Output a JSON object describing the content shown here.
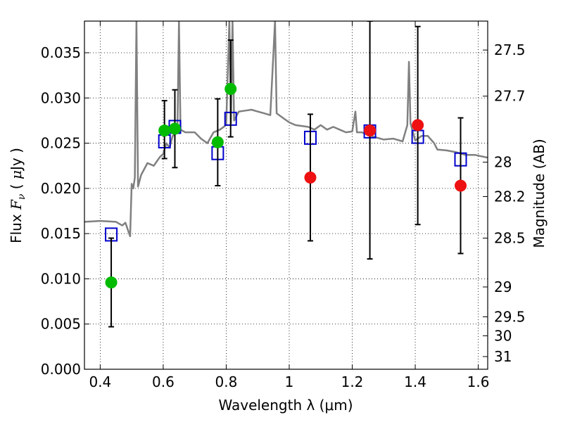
{
  "chart_data": {
    "type": "scatter",
    "xlabel": "Wavelength  λ (μm)",
    "ylabel": "Flux  F_ν  ( μJy )",
    "y2label": "Magnitude (AB)",
    "xlim": [
      0.35,
      1.63
    ],
    "ylim": [
      0.0,
      0.0385
    ],
    "grid": true,
    "x_ticks": [
      0.4,
      0.6,
      0.8,
      1.0,
      1.2,
      1.4,
      1.6
    ],
    "x_tick_labels": [
      "0.4",
      "0.6",
      "0.8",
      "1",
      "1.2",
      "1.4",
      "1.6"
    ],
    "y_ticks": [
      0.0,
      0.005,
      0.01,
      0.015,
      0.02,
      0.025,
      0.03,
      0.035
    ],
    "y_tick_labels": [
      "0.000",
      "0.005",
      "0.010",
      "0.015",
      "0.020",
      "0.025",
      "0.030",
      "0.035"
    ],
    "y2_ticks": [
      {
        "label": "27.5",
        "flux": 0.0353
      },
      {
        "label": "27.7",
        "flux": 0.0302
      },
      {
        "label": "28",
        "flux": 0.0229
      },
      {
        "label": "28.2",
        "flux": 0.0191
      },
      {
        "label": "28.5",
        "flux": 0.0145
      },
      {
        "label": "29",
        "flux": 0.0091
      },
      {
        "label": "29.5",
        "flux": 0.0058
      },
      {
        "label": "30",
        "flux": 0.0037
      },
      {
        "label": "31",
        "flux": 0.0014
      }
    ],
    "colors": {
      "model": "#808080",
      "model_photometry": "#0000cc",
      "detections_green": "#00bb00",
      "detections_red": "#ee1111",
      "errorbar": "#000000",
      "grid": "#000000"
    },
    "series": [
      {
        "kind": "line",
        "color_key": "model",
        "points": [
          [
            0.35,
            0.0163
          ],
          [
            0.4,
            0.0164
          ],
          [
            0.45,
            0.0163
          ],
          [
            0.47,
            0.0159
          ],
          [
            0.48,
            0.0162
          ],
          [
            0.495,
            0.0147
          ],
          [
            0.5,
            0.0205
          ],
          [
            0.505,
            0.02
          ],
          [
            0.51,
            0.0212
          ],
          [
            0.515,
            0.0385
          ],
          [
            0.52,
            0.0202
          ],
          [
            0.53,
            0.0215
          ],
          [
            0.55,
            0.0228
          ],
          [
            0.57,
            0.0225
          ],
          [
            0.59,
            0.0235
          ],
          [
            0.6,
            0.0238
          ],
          [
            0.61,
            0.025
          ],
          [
            0.62,
            0.0245
          ],
          [
            0.63,
            0.0258
          ],
          [
            0.645,
            0.0262
          ],
          [
            0.65,
            0.0385
          ],
          [
            0.655,
            0.0265
          ],
          [
            0.67,
            0.0262
          ],
          [
            0.7,
            0.0262
          ],
          [
            0.72,
            0.0255
          ],
          [
            0.74,
            0.025
          ],
          [
            0.76,
            0.0262
          ],
          [
            0.78,
            0.0265
          ],
          [
            0.8,
            0.027
          ],
          [
            0.81,
            0.0385
          ],
          [
            0.815,
            0.0272
          ],
          [
            0.82,
            0.0385
          ],
          [
            0.825,
            0.0275
          ],
          [
            0.84,
            0.0285
          ],
          [
            0.86,
            0.0286
          ],
          [
            0.88,
            0.0287
          ],
          [
            0.9,
            0.0285
          ],
          [
            0.92,
            0.0283
          ],
          [
            0.94,
            0.0281
          ],
          [
            0.955,
            0.0385
          ],
          [
            0.96,
            0.0283
          ],
          [
            0.98,
            0.0278
          ],
          [
            1.0,
            0.0273
          ],
          [
            1.02,
            0.027
          ],
          [
            1.04,
            0.0269
          ],
          [
            1.06,
            0.0268
          ],
          [
            1.08,
            0.0265
          ],
          [
            1.1,
            0.027
          ],
          [
            1.12,
            0.0265
          ],
          [
            1.14,
            0.0268
          ],
          [
            1.16,
            0.0265
          ],
          [
            1.18,
            0.0262
          ],
          [
            1.2,
            0.0263
          ],
          [
            1.21,
            0.0285
          ],
          [
            1.215,
            0.0262
          ],
          [
            1.23,
            0.0262
          ],
          [
            1.26,
            0.0258
          ],
          [
            1.28,
            0.0256
          ],
          [
            1.3,
            0.0254
          ],
          [
            1.33,
            0.0255
          ],
          [
            1.36,
            0.0252
          ],
          [
            1.375,
            0.027
          ],
          [
            1.38,
            0.034
          ],
          [
            1.385,
            0.0272
          ],
          [
            1.4,
            0.0253
          ],
          [
            1.42,
            0.0258
          ],
          [
            1.44,
            0.0258
          ],
          [
            1.46,
            0.025
          ],
          [
            1.47,
            0.0243
          ],
          [
            1.5,
            0.0242
          ],
          [
            1.53,
            0.024
          ],
          [
            1.56,
            0.0237
          ],
          [
            1.59,
            0.0237
          ],
          [
            1.63,
            0.0234
          ]
        ]
      },
      {
        "kind": "square",
        "color_key": "model_photometry",
        "points": [
          [
            0.435,
            0.0149
          ],
          [
            0.604,
            0.0252
          ],
          [
            0.637,
            0.0268
          ],
          [
            0.773,
            0.0239
          ],
          [
            0.814,
            0.0277
          ],
          [
            1.067,
            0.0256
          ],
          [
            1.256,
            0.0263
          ],
          [
            1.408,
            0.0257
          ],
          [
            1.544,
            0.0232
          ]
        ]
      },
      {
        "kind": "circle",
        "color_key": "detections_green",
        "points": [
          {
            "x": 0.435,
            "y": 0.0096,
            "err": [
              0.0047,
              0.0145
            ]
          },
          {
            "x": 0.604,
            "y": 0.0264,
            "err": [
              0.0233,
              0.0297
            ]
          },
          {
            "x": 0.637,
            "y": 0.0266,
            "err": [
              0.0223,
              0.0309
            ]
          },
          {
            "x": 0.773,
            "y": 0.0251,
            "err": [
              0.0203,
              0.0299
            ]
          },
          {
            "x": 0.814,
            "y": 0.031,
            "err": [
              0.0257,
              0.0364
            ]
          }
        ]
      },
      {
        "kind": "circle",
        "color_key": "detections_red",
        "points": [
          {
            "x": 1.067,
            "y": 0.0212,
            "err": [
              0.0142,
              0.0282
            ]
          },
          {
            "x": 1.256,
            "y": 0.0264,
            "err": [
              0.0122,
              0.0385
            ]
          },
          {
            "x": 1.408,
            "y": 0.027,
            "err": [
              0.016,
              0.0379
            ]
          },
          {
            "x": 1.544,
            "y": 0.0203,
            "err": [
              0.0128,
              0.0278
            ]
          }
        ]
      }
    ]
  }
}
